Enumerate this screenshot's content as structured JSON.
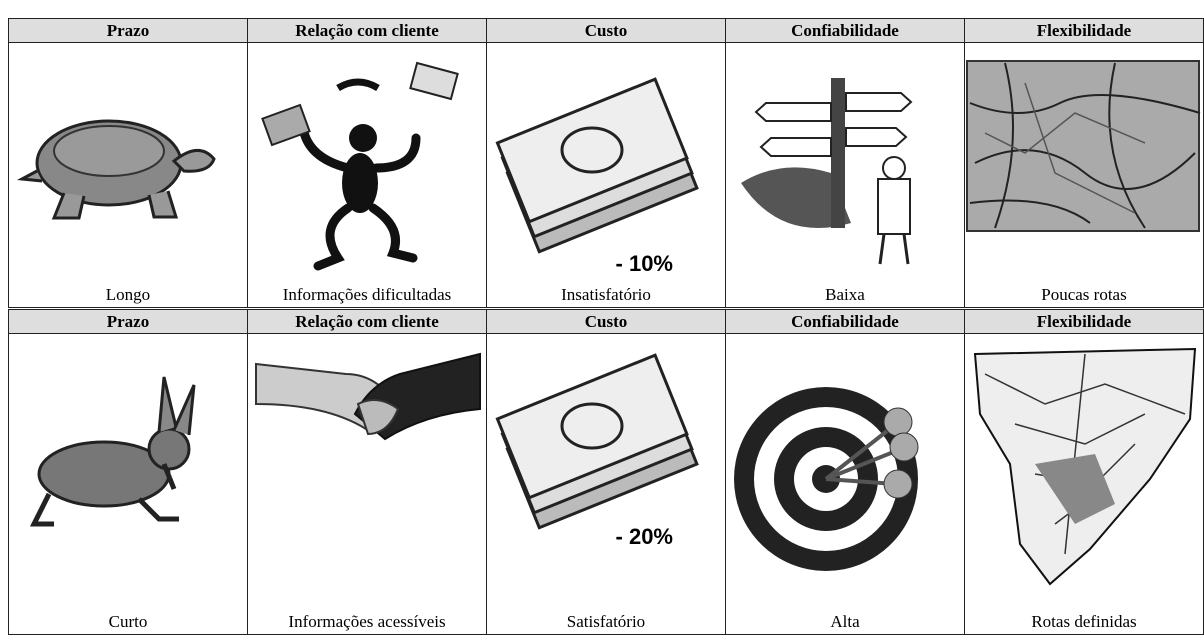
{
  "tables": [
    {
      "headers": [
        "Prazo",
        "Relação com cliente",
        "Custo",
        "Confiabilidade",
        "Flexibilidade"
      ],
      "cost_label": "- 10%",
      "captions": [
        "Longo",
        "Informações dificultadas",
        "Insatisfatório",
        "Baixa",
        "Poucas rotas"
      ]
    },
    {
      "headers": [
        "Prazo",
        "Relação com cliente",
        "Custo",
        "Confiabilidade",
        "Flexibilidade"
      ],
      "cost_label": "- 20%",
      "captions": [
        "Curto",
        "Informações acessíveis",
        "Satisfatório",
        "Alta",
        "Rotas definidas"
      ]
    }
  ]
}
